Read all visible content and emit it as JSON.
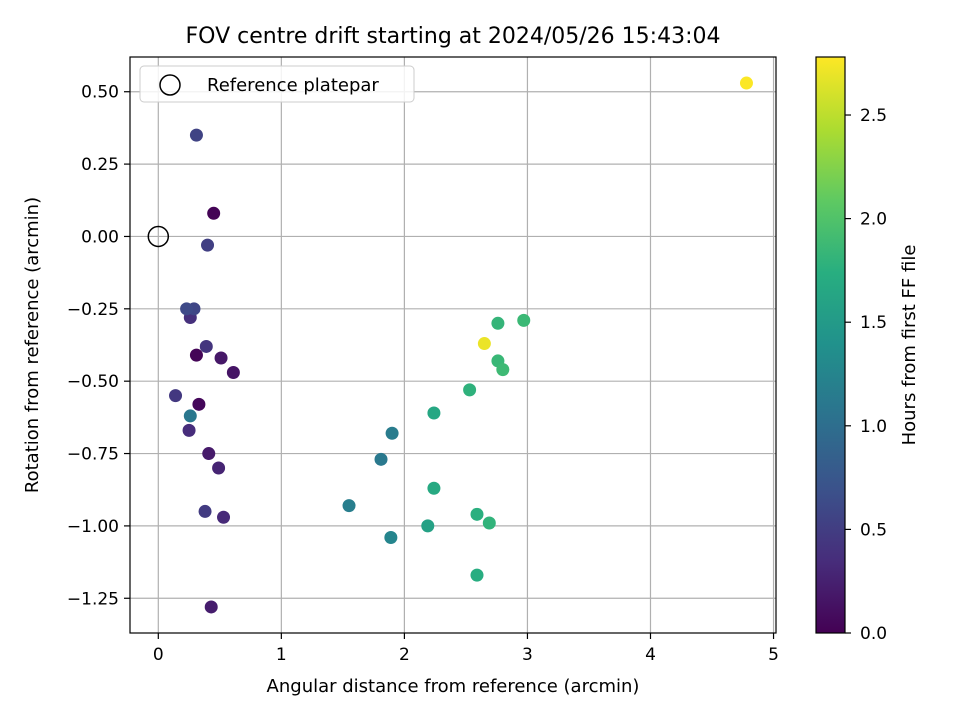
{
  "chart_data": {
    "type": "scatter",
    "title": "FOV centre drift starting at 2024/05/26 15:43:04",
    "xlabel": "Angular distance from reference (arcmin)",
    "ylabel": "Rotation from reference (arcmin)",
    "xlim": [
      -0.23,
      5.02
    ],
    "ylim": [
      -1.37,
      0.62
    ],
    "xticks": [
      0,
      1,
      2,
      3,
      4,
      5
    ],
    "yticks": [
      0.5,
      0.25,
      0.0,
      -0.25,
      -0.5,
      -0.75,
      -1.0,
      -1.25
    ],
    "ytick_labels": [
      "0.50",
      "0.25",
      "0.00",
      "−0.25",
      "−0.50",
      "−0.75",
      "−1.00",
      "−1.25"
    ],
    "grid": true,
    "legend": {
      "position": "upper-left",
      "entries": [
        "Reference platepar"
      ]
    },
    "reference_point": {
      "x": 0,
      "y": 0
    },
    "colorbar": {
      "label": "Hours from first FF file",
      "range": [
        0,
        2.78
      ],
      "ticks": [
        0.0,
        0.5,
        1.0,
        1.5,
        2.0,
        2.5
      ],
      "tick_labels": [
        "0.0",
        "0.5",
        "1.0",
        "1.5",
        "2.0",
        "2.5"
      ],
      "colormap": "viridis"
    },
    "points": [
      {
        "x": 0.45,
        "y": 0.08,
        "h": 0.02
      },
      {
        "x": 0.31,
        "y": -0.41,
        "h": 0.03
      },
      {
        "x": 0.33,
        "y": -0.58,
        "h": 0.05
      },
      {
        "x": 0.61,
        "y": -0.47,
        "h": 0.15
      },
      {
        "x": 0.51,
        "y": -0.42,
        "h": 0.18
      },
      {
        "x": 0.41,
        "y": -0.75,
        "h": 0.2
      },
      {
        "x": 0.43,
        "y": -1.28,
        "h": 0.22
      },
      {
        "x": 0.49,
        "y": -0.8,
        "h": 0.28
      },
      {
        "x": 0.53,
        "y": -0.97,
        "h": 0.32
      },
      {
        "x": 0.25,
        "y": -0.67,
        "h": 0.35
      },
      {
        "x": 0.26,
        "y": -0.28,
        "h": 0.38
      },
      {
        "x": 0.39,
        "y": -0.38,
        "h": 0.42
      },
      {
        "x": 0.14,
        "y": -0.55,
        "h": 0.45
      },
      {
        "x": 0.38,
        "y": -0.95,
        "h": 0.48
      },
      {
        "x": 0.4,
        "y": -0.03,
        "h": 0.52
      },
      {
        "x": 0.31,
        "y": 0.35,
        "h": 0.55
      },
      {
        "x": 0.29,
        "y": -0.25,
        "h": 0.58
      },
      {
        "x": 0.23,
        "y": -0.25,
        "h": 0.62
      },
      {
        "x": 0.26,
        "y": -0.62,
        "h": 1.1
      },
      {
        "x": 1.55,
        "y": -0.93,
        "h": 1.18
      },
      {
        "x": 1.81,
        "y": -0.77,
        "h": 1.12
      },
      {
        "x": 1.9,
        "y": -0.68,
        "h": 1.15
      },
      {
        "x": 1.89,
        "y": -1.04,
        "h": 1.25
      },
      {
        "x": 2.19,
        "y": -1.0,
        "h": 1.58
      },
      {
        "x": 2.24,
        "y": -0.61,
        "h": 1.65
      },
      {
        "x": 2.24,
        "y": -0.87,
        "h": 1.68
      },
      {
        "x": 2.53,
        "y": -0.53,
        "h": 1.78
      },
      {
        "x": 2.59,
        "y": -0.96,
        "h": 1.75
      },
      {
        "x": 2.59,
        "y": -1.17,
        "h": 1.72
      },
      {
        "x": 2.69,
        "y": -0.99,
        "h": 1.8
      },
      {
        "x": 2.76,
        "y": -0.43,
        "h": 1.85
      },
      {
        "x": 2.8,
        "y": -0.46,
        "h": 1.88
      },
      {
        "x": 2.76,
        "y": -0.3,
        "h": 1.82
      },
      {
        "x": 2.97,
        "y": -0.29,
        "h": 1.86
      },
      {
        "x": 2.65,
        "y": -0.37,
        "h": 2.7
      },
      {
        "x": 4.78,
        "y": 0.53,
        "h": 2.77
      }
    ]
  }
}
